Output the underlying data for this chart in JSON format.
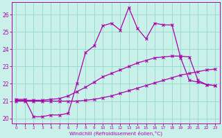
{
  "xlabel": "Windchill (Refroidissement éolien,°C)",
  "xlim": [
    -0.5,
    23.5
  ],
  "ylim": [
    19.7,
    26.7
  ],
  "yticks": [
    20,
    21,
    22,
    23,
    24,
    25,
    26
  ],
  "xticks": [
    0,
    1,
    2,
    3,
    4,
    5,
    6,
    7,
    8,
    9,
    10,
    11,
    12,
    13,
    14,
    15,
    16,
    17,
    18,
    19,
    20,
    21,
    22,
    23
  ],
  "background_color": "#caf0ea",
  "grid_color": "#99ddcc",
  "line_color": "#aa00aa",
  "lines": [
    {
      "x": [
        0,
        1,
        2,
        3,
        4,
        5,
        6,
        7,
        8,
        9,
        10,
        11,
        12,
        13,
        14,
        15,
        16,
        17,
        18,
        19,
        20,
        21,
        22,
        23
      ],
      "y": [
        21.0,
        21.0,
        21.0,
        21.0,
        21.0,
        21.0,
        21.0,
        21.0,
        21.05,
        21.1,
        21.2,
        21.3,
        21.45,
        21.6,
        21.75,
        21.9,
        22.05,
        22.2,
        22.35,
        22.5,
        22.6,
        22.7,
        22.8,
        22.85
      ],
      "marker": "x",
      "markersize": 2.5,
      "lw": 0.9
    },
    {
      "x": [
        0,
        1,
        2,
        3,
        4,
        5,
        6,
        7,
        8,
        9,
        10,
        11,
        12,
        13,
        14,
        15,
        16,
        17,
        18,
        19,
        20,
        21,
        22,
        23
      ],
      "y": [
        21.05,
        21.05,
        21.05,
        21.05,
        21.1,
        21.15,
        21.3,
        21.55,
        21.8,
        22.1,
        22.4,
        22.6,
        22.8,
        23.0,
        23.2,
        23.35,
        23.5,
        23.55,
        23.6,
        23.6,
        23.55,
        22.2,
        21.95,
        21.9
      ],
      "marker": "x",
      "markersize": 2.5,
      "lw": 0.9
    },
    {
      "x": [
        0,
        1,
        2,
        3,
        4,
        5,
        6,
        7,
        8,
        9,
        10,
        11,
        12,
        13,
        14,
        15,
        16,
        17,
        18,
        19,
        20,
        21,
        22,
        23
      ],
      "y": [
        21.1,
        21.1,
        20.1,
        20.1,
        20.2,
        20.2,
        20.3,
        22.0,
        23.8,
        24.2,
        25.35,
        25.5,
        25.1,
        26.4,
        25.2,
        24.6,
        25.5,
        25.4,
        25.4,
        23.5,
        22.2,
        22.1,
        21.95,
        21.9
      ],
      "marker": "x",
      "markersize": 3.0,
      "lw": 0.9
    }
  ]
}
